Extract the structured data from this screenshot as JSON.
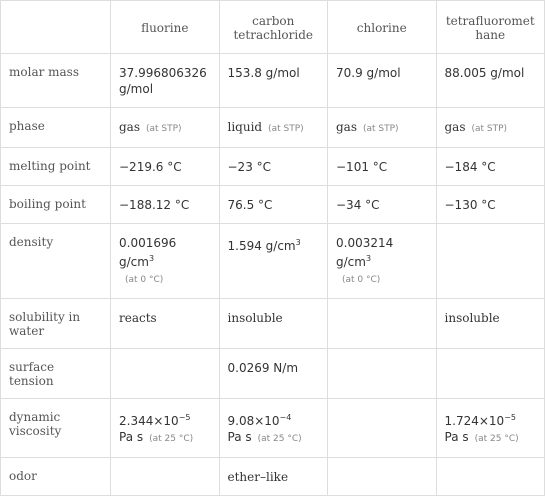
{
  "table": {
    "header": [
      "fluorine",
      "carbon tetrachloride",
      "chlorine",
      "tetrafluoromethane"
    ],
    "rows": [
      {
        "label": "molar mass",
        "cells": [
          {
            "text": "37.996806326 g/mol"
          },
          {
            "text": "153.8 g/mol"
          },
          {
            "text": "70.9 g/mol"
          },
          {
            "text": "88.005 g/mol"
          }
        ]
      },
      {
        "label": "phase",
        "cells": [
          {
            "text": "gas",
            "note": "(at STP)"
          },
          {
            "text": "liquid",
            "note": "(at STP)"
          },
          {
            "text": "gas",
            "note": "(at STP)"
          },
          {
            "text": "gas",
            "note": "(at STP)"
          }
        ]
      },
      {
        "label": "melting point",
        "cells": [
          {
            "text": "−219.6 °C"
          },
          {
            "text": "−23 °C"
          },
          {
            "text": "−101 °C"
          },
          {
            "text": "−184 °C"
          }
        ]
      },
      {
        "label": "boiling point",
        "cells": [
          {
            "text": "−188.12 °C"
          },
          {
            "text": "76.5 °C"
          },
          {
            "text": "−34 °C"
          },
          {
            "text": "−130 °C"
          }
        ]
      },
      {
        "label": "density",
        "cells": [
          {
            "text": "0.001696 g/cm",
            "sup": "3",
            "note": "(at 0 °C)"
          },
          {
            "text": "1.594 g/cm",
            "sup": "3"
          },
          {
            "text": "0.003214 g/cm",
            "sup": "3",
            "note": "(at 0 °C)"
          },
          null
        ]
      },
      {
        "label": "solubility in water",
        "cells": [
          {
            "text": "reacts"
          },
          {
            "text": "insoluble"
          },
          null,
          {
            "text": "insoluble"
          }
        ]
      },
      {
        "label": "surface tension",
        "cells": [
          null,
          {
            "text": "0.0269 N/m"
          },
          null,
          null
        ]
      },
      {
        "label": "dynamic viscosity",
        "cells": [
          {
            "text": "2.344×10",
            "sup": "−5",
            "unit": "Pa s",
            "note": "(at 25 °C)"
          },
          {
            "text": "9.08×10",
            "sup": "−4",
            "unit": "Pa s",
            "note": "(at 25 °C)"
          },
          null,
          {
            "text": "1.724×10",
            "sup": "−5",
            "unit": "Pa s",
            "note": "(at 25 °C)"
          }
        ]
      },
      {
        "label": "odor",
        "cells": [
          null,
          {
            "text": "ether–like"
          },
          null,
          null
        ]
      }
    ]
  }
}
